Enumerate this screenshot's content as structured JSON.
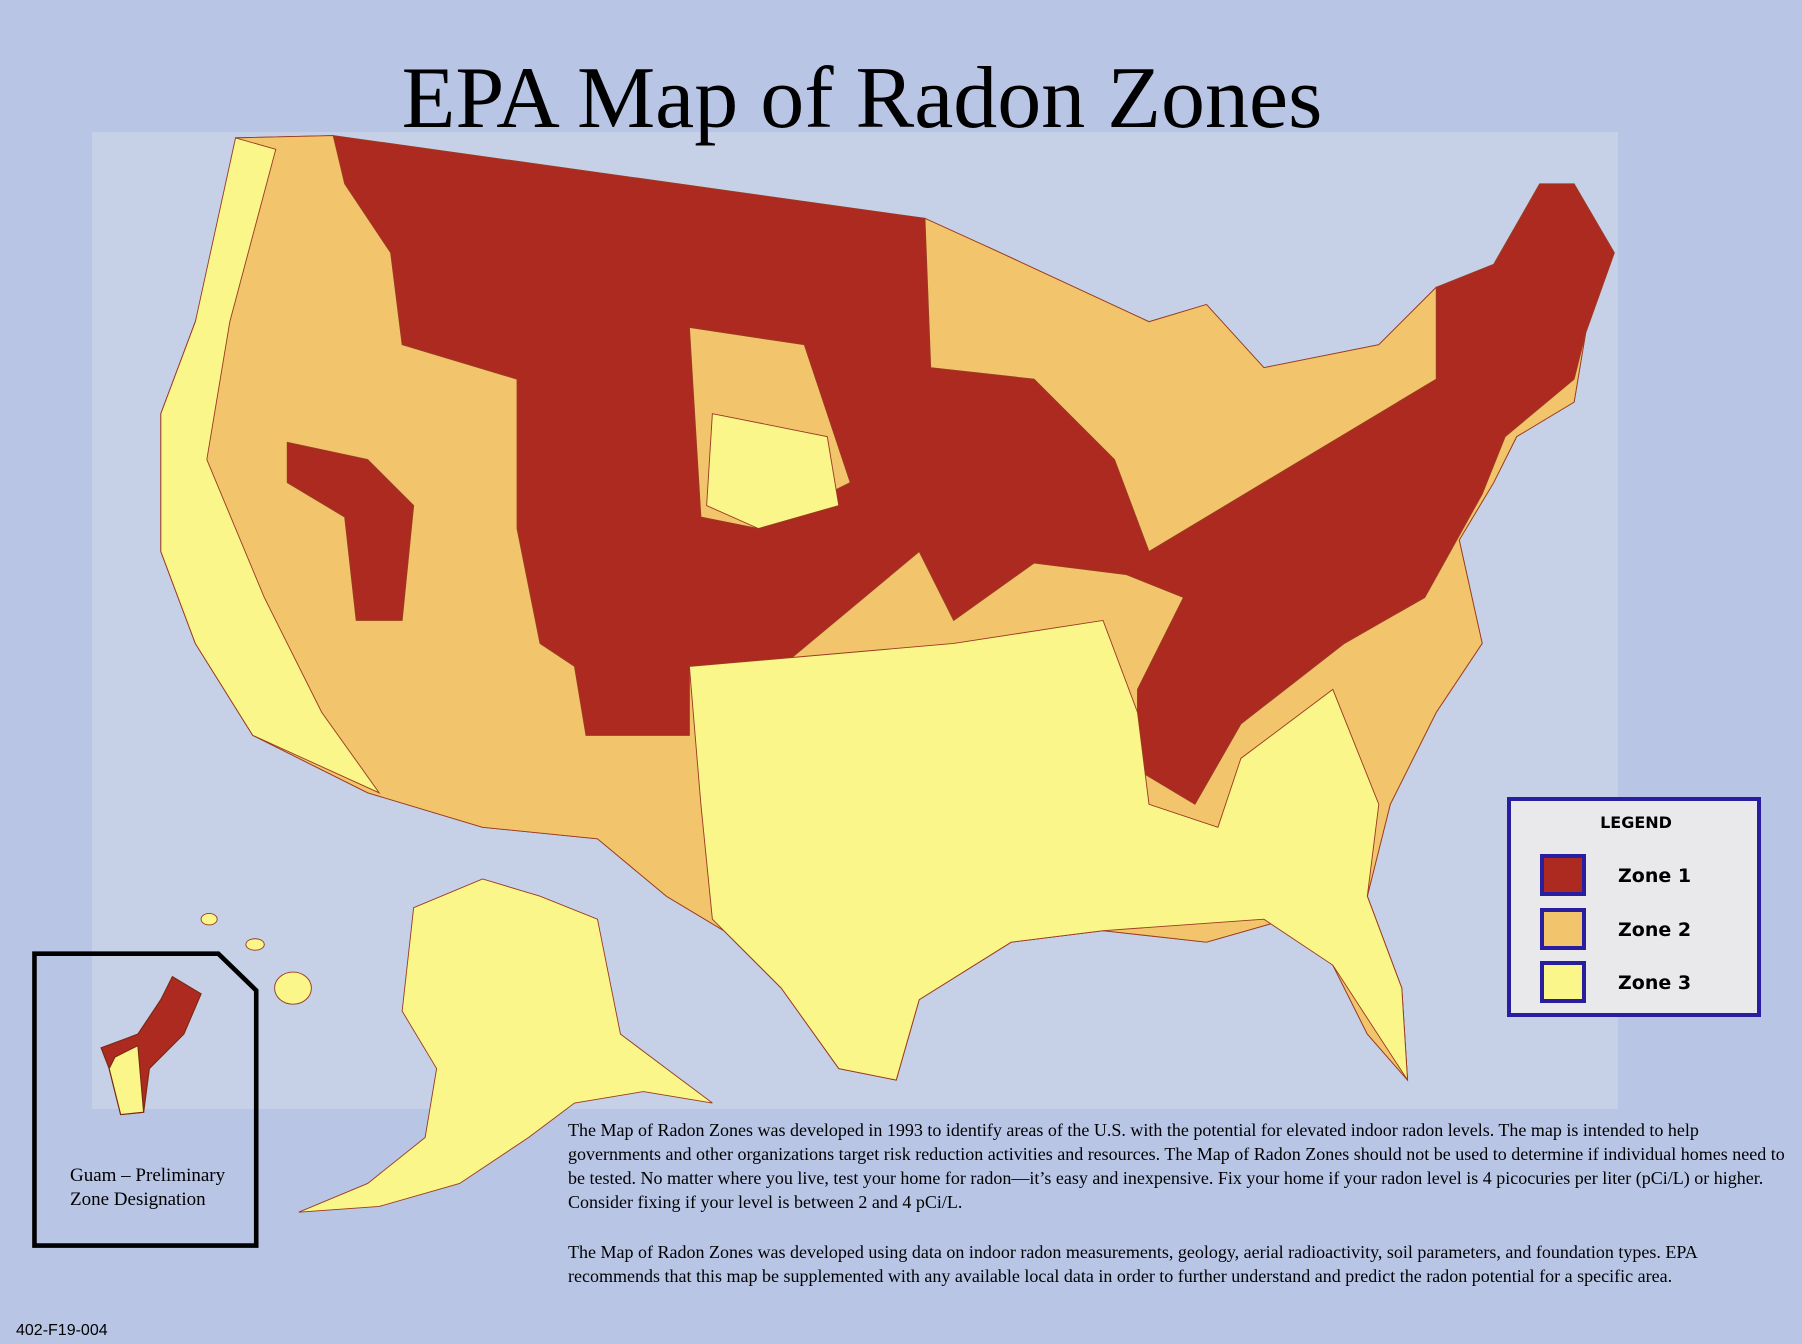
{
  "title": "EPA Map of Radon Zones",
  "legend": {
    "title": "LEGEND",
    "items": [
      {
        "label": "Zone 1",
        "color": "#ad2a20"
      },
      {
        "label": "Zone 2",
        "color": "#f2c46c"
      },
      {
        "label": "Zone 3",
        "color": "#fbf68a"
      }
    ]
  },
  "inset": {
    "lines": [
      "Guam – Preliminary",
      "Zone Designation"
    ]
  },
  "description": [
    "The Map of Radon Zones was developed in 1993 to identify areas of the U.S. with the potential for elevated indoor radon levels. The map is intended to help governments and other organizations target risk reduction activities and resources. The Map of Radon Zones should not be used to determine if individual homes need to be tested. No matter where you live, test your home for radon—it’s easy and inexpensive. Fix your home if your radon level is 4 picocuries per liter (pCi/L) or higher. Consider fixing if your level is between 2 and 4 pCi/L.",
    "The Map of Radon Zones was developed using data on indoor radon measurements, geology, aerial radioactivity, soil parameters, and foundation types. EPA recommends that this map be supplemented with any available local data in order to further understand and predict the radon potential for a specific area."
  ],
  "code": "402-F19-004"
}
